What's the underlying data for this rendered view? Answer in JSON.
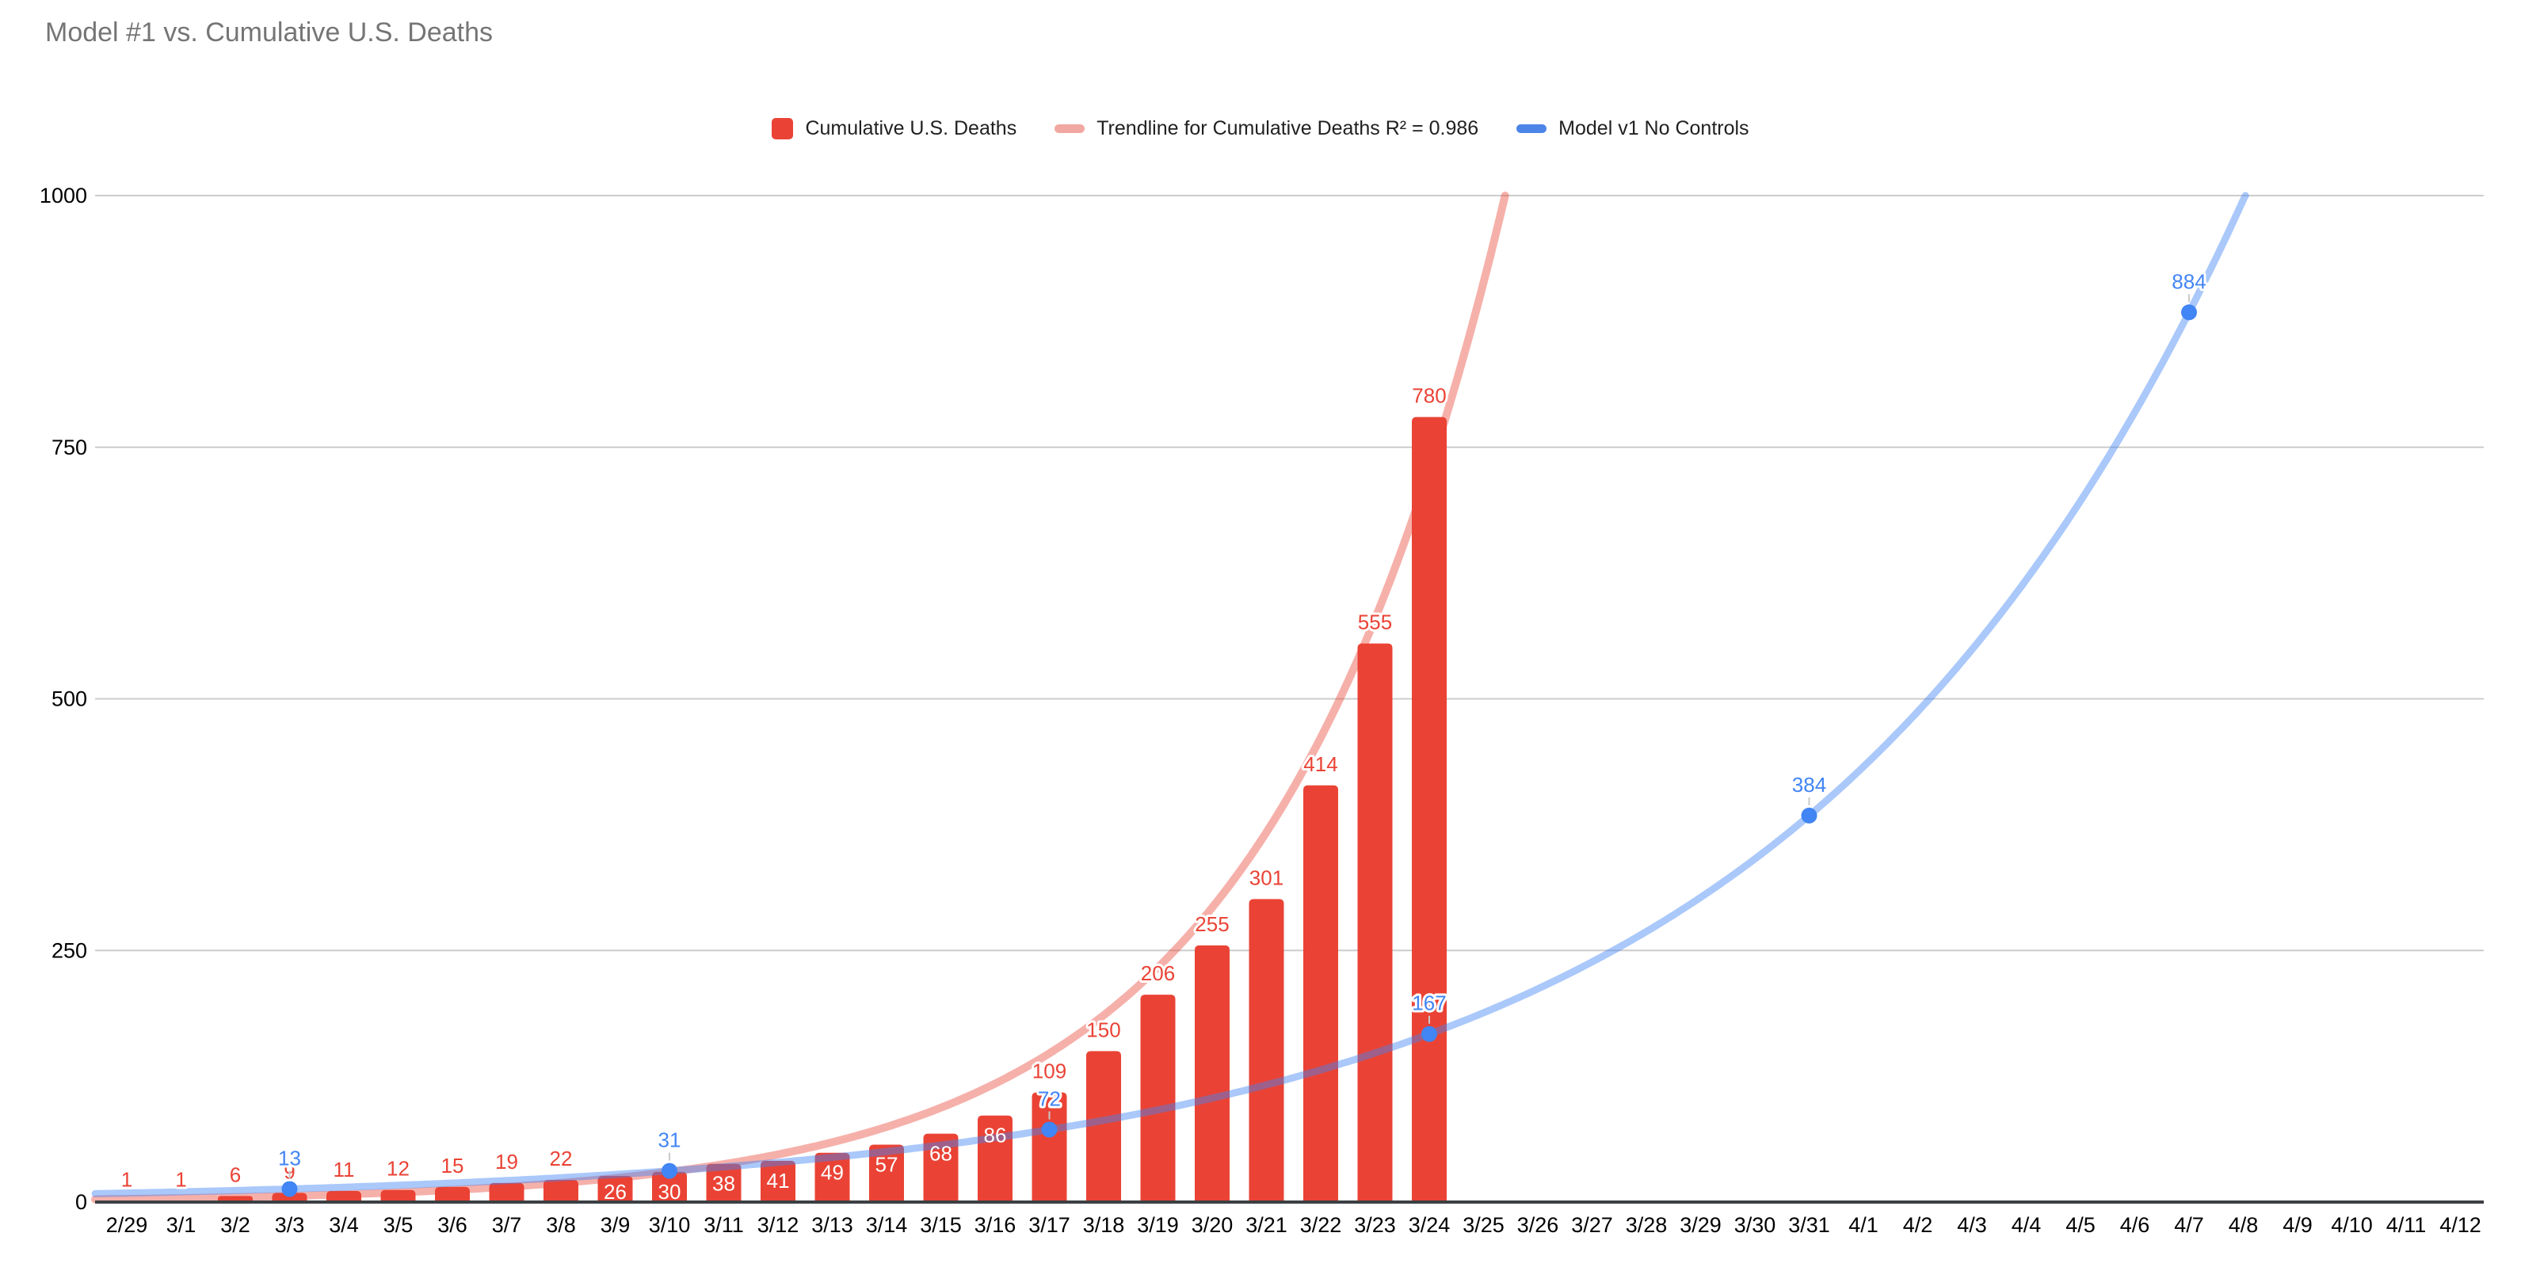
{
  "title": "Model #1 vs. Cumulative U.S. Deaths",
  "legend": {
    "items": [
      {
        "label": "Cumulative U.S. Deaths",
        "color": "#EA4335",
        "shape": "square"
      },
      {
        "label": "Trendline for Cumulative Deaths R² = 0.986",
        "color": "#F2A8A2",
        "shape": "pill"
      },
      {
        "label": "Model v1 No Controls",
        "color": "#4C84E8",
        "shape": "pill"
      }
    ]
  },
  "colors": {
    "bar": "#EA4335",
    "bar_label": "#EA4335",
    "inside_label": "#FFFFFF",
    "trendline": "#EA4335",
    "trendline_opacity": 0.42,
    "model_line": "#4285F4",
    "model_line_opacity": 0.45,
    "model_marker": "#4285F4",
    "model_label": "#4285F4",
    "grid": "#CCCCCC",
    "axis": "#3C4043",
    "tick_text": "#000000",
    "title_text": "#757575",
    "leader": "#C9C9C9"
  },
  "chart_data": {
    "type": "bar",
    "title": "Model #1 vs. Cumulative U.S. Deaths",
    "xlabel": "",
    "ylabel": "",
    "ylim": [
      0,
      1000
    ],
    "yticks": [
      0,
      250,
      500,
      750,
      1000
    ],
    "grid": true,
    "legend_position": "top-center",
    "categories": [
      "2/29",
      "3/1",
      "3/2",
      "3/3",
      "3/4",
      "3/5",
      "3/6",
      "3/7",
      "3/8",
      "3/9",
      "3/10",
      "3/11",
      "3/12",
      "3/13",
      "3/14",
      "3/15",
      "3/16",
      "3/17",
      "3/18",
      "3/19",
      "3/20",
      "3/21",
      "3/22",
      "3/23",
      "3/24",
      "3/25",
      "3/26",
      "3/27",
      "3/28",
      "3/29",
      "3/30",
      "3/31",
      "4/1",
      "4/2",
      "4/3",
      "4/4",
      "4/5",
      "4/6",
      "4/7",
      "4/8",
      "4/9",
      "4/10",
      "4/11",
      "4/12"
    ],
    "series": [
      {
        "name": "Cumulative U.S. Deaths",
        "type": "bar",
        "values": [
          1,
          1,
          6,
          9,
          11,
          12,
          15,
          19,
          22,
          26,
          30,
          38,
          41,
          49,
          57,
          68,
          86,
          109,
          150,
          206,
          255,
          301,
          414,
          555,
          780
        ],
        "label_inside_indices": [
          9,
          10,
          11,
          12,
          13,
          14,
          15,
          16
        ]
      },
      {
        "name": "Trendline for Cumulative Deaths R² = 0.986",
        "type": "trendline",
        "r_squared": 0.986,
        "exp_fit": {
          "v0": 3.08,
          "k": 0.2277
        }
      },
      {
        "name": "Model v1 No Controls",
        "type": "line",
        "points": [
          {
            "date": "3/3",
            "value": 13
          },
          {
            "date": "3/10",
            "value": 31
          },
          {
            "date": "3/17",
            "value": 72
          },
          {
            "date": "3/24",
            "value": 167
          },
          {
            "date": "3/31",
            "value": 384
          },
          {
            "date": "4/7",
            "value": 884
          }
        ]
      }
    ]
  }
}
